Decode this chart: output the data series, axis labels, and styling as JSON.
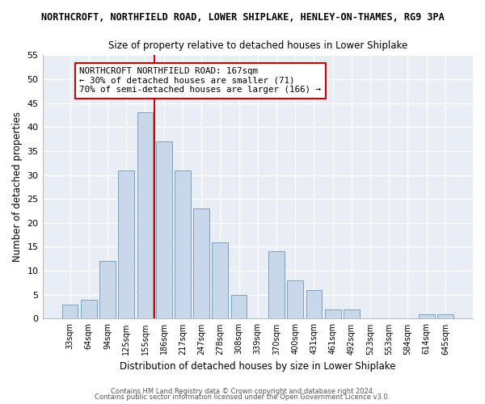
{
  "title_line1": "NORTHCROFT, NORTHFIELD ROAD, LOWER SHIPLAKE, HENLEY-ON-THAMES, RG9 3PA",
  "title_line2": "Size of property relative to detached houses in Lower Shiplake",
  "xlabel": "Distribution of detached houses by size in Lower Shiplake",
  "ylabel": "Number of detached properties",
  "footer_line1": "Contains HM Land Registry data © Crown copyright and database right 2024.",
  "footer_line2": "Contains public sector information licensed under the Open Government Licence v3.0.",
  "bar_labels": [
    "33sqm",
    "64sqm",
    "94sqm",
    "125sqm",
    "155sqm",
    "186sqm",
    "217sqm",
    "247sqm",
    "278sqm",
    "308sqm",
    "339sqm",
    "370sqm",
    "400sqm",
    "431sqm",
    "461sqm",
    "492sqm",
    "523sqm",
    "553sqm",
    "584sqm",
    "614sqm",
    "645sqm"
  ],
  "bar_values": [
    3,
    4,
    12,
    31,
    43,
    37,
    31,
    23,
    16,
    5,
    0,
    14,
    8,
    6,
    2,
    2,
    0,
    0,
    0,
    1,
    1
  ],
  "bar_color": "#c8d8ea",
  "bar_edge_color": "#7a9fc0",
  "ylim": [
    0,
    55
  ],
  "yticks": [
    0,
    5,
    10,
    15,
    20,
    25,
    30,
    35,
    40,
    45,
    50,
    55
  ],
  "vline_color": "#cc0000",
  "annotation_title": "NORTHCROFT NORTHFIELD ROAD: 167sqm",
  "annotation_line2": "← 30% of detached houses are smaller (71)",
  "annotation_line3": "70% of semi-detached houses are larger (166) →",
  "annotation_box_color": "#ffffff",
  "annotation_box_edge": "#cc0000",
  "bg_color": "#ffffff",
  "plot_bg_color": "#e8eef4"
}
